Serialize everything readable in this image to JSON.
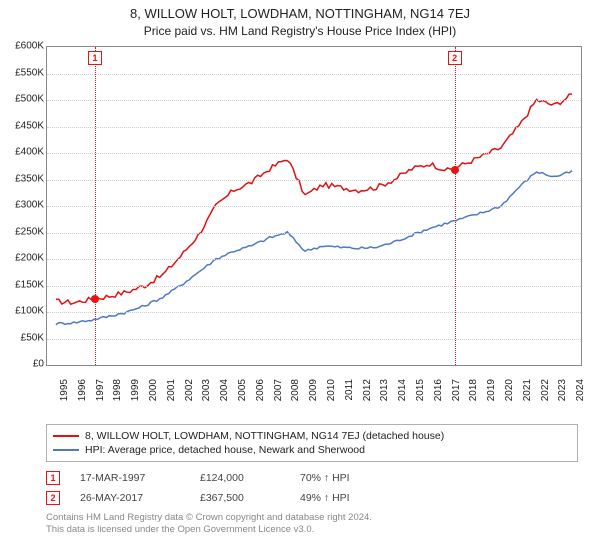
{
  "title": "8, WILLOW HOLT, LOWDHAM, NOTTINGHAM, NG14 7EJ",
  "subtitle": "Price paid vs. HM Land Registry's House Price Index (HPI)",
  "chart": {
    "type": "line",
    "background_color": "#ffffff",
    "grid_color": "#cfcfcf",
    "border_color": "#888888",
    "y_axis": {
      "min": 0,
      "max": 600000,
      "step": 50000,
      "ticks": [
        "£0",
        "£50K",
        "£100K",
        "£150K",
        "£200K",
        "£250K",
        "£300K",
        "£350K",
        "£400K",
        "£450K",
        "£500K",
        "£550K",
        "£600K"
      ],
      "label_fontsize": 10
    },
    "x_axis": {
      "years": [
        1995,
        1996,
        1997,
        1998,
        1999,
        2000,
        2001,
        2002,
        2003,
        2004,
        2005,
        2006,
        2007,
        2008,
        2009,
        2010,
        2011,
        2012,
        2013,
        2014,
        2015,
        2016,
        2017,
        2018,
        2019,
        2020,
        2021,
        2022,
        2023,
        2024
      ],
      "label_fontsize": 10,
      "label_rotation": -90
    },
    "series": [
      {
        "name": "property",
        "label": "8, WILLOW HOLT, LOWDHAM, NOTTINGHAM, NG14 7EJ (detached house)",
        "color": "#e11111",
        "line_width": 1.5,
        "values": [
          120,
          118,
          124,
          130,
          138,
          150,
          170,
          205,
          245,
          300,
          330,
          345,
          370,
          390,
          320,
          340,
          335,
          330,
          335,
          350,
          370,
          380,
          367,
          380,
          395,
          410,
          450,
          500,
          490,
          510
        ]
      },
      {
        "name": "hpi",
        "label": "HPI: Average price, detached house, Newark and Sherwood",
        "color": "#4e79c4",
        "line_width": 1.5,
        "values": [
          78,
          80,
          85,
          92,
          100,
          112,
          128,
          150,
          175,
          200,
          215,
          225,
          240,
          250,
          215,
          225,
          222,
          220,
          222,
          232,
          245,
          258,
          268,
          278,
          288,
          300,
          335,
          365,
          355,
          365
        ]
      }
    ],
    "markers": [
      {
        "n": "1",
        "year": 1997.2,
        "value": 124
      },
      {
        "n": "2",
        "year": 2017.4,
        "value": 367
      }
    ]
  },
  "legend": {
    "items": [
      {
        "color": "#e11111",
        "text": "8, WILLOW HOLT, LOWDHAM, NOTTINGHAM, NG14 7EJ (detached house)"
      },
      {
        "color": "#4e79c4",
        "text": "HPI: Average price, detached house, Newark and Sherwood"
      }
    ]
  },
  "transactions": [
    {
      "n": "1",
      "date": "17-MAR-1997",
      "price": "£124,000",
      "pct": "70% ↑ HPI"
    },
    {
      "n": "2",
      "date": "26-MAY-2017",
      "price": "£367,500",
      "pct": "49% ↑ HPI"
    }
  ],
  "footer": {
    "line1": "Contains HM Land Registry data © Crown copyright and database right 2024.",
    "line2": "This data is licensed under the Open Government Licence v3.0."
  }
}
